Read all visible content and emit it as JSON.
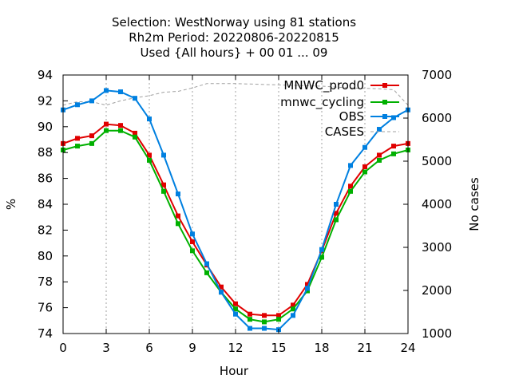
{
  "chart_data": {
    "type": "line",
    "title_lines": [
      "Selection: WestNorway using    81 stations",
      "Rh2m   Period: 20220806-20220815",
      "Used {All hours} + 00 01 ... 09"
    ],
    "xlabel": "Hour",
    "ylabel": "%",
    "y2label": "No cases",
    "xlim": [
      0,
      24
    ],
    "ylim": [
      74,
      94
    ],
    "y2lim": [
      1000,
      7000
    ],
    "xticks": [
      0,
      3,
      6,
      9,
      12,
      15,
      18,
      21,
      24
    ],
    "yticks": [
      74,
      76,
      78,
      80,
      82,
      84,
      86,
      88,
      90,
      92,
      94
    ],
    "y2ticks": [
      1000,
      2000,
      3000,
      4000,
      5000,
      6000,
      7000
    ],
    "grid": "x-only dashed",
    "legend_position": "top-right",
    "x": [
      0,
      1,
      2,
      3,
      4,
      5,
      6,
      7,
      8,
      9,
      10,
      11,
      12,
      13,
      14,
      15,
      16,
      17,
      18,
      19,
      20,
      21,
      22,
      23,
      24
    ],
    "series": [
      {
        "name": "MNWC_prod0",
        "color": "#e00000",
        "marker": "filled-square",
        "values": [
          88.7,
          89.1,
          89.3,
          90.2,
          90.1,
          89.5,
          87.8,
          85.5,
          83.1,
          81.1,
          79.3,
          77.6,
          76.3,
          75.5,
          75.4,
          75.4,
          76.2,
          77.8,
          80.4,
          83.3,
          85.4,
          86.9,
          87.8,
          88.5,
          88.7
        ]
      },
      {
        "name": "mnwc_cycling",
        "color": "#00b000",
        "marker": "filled-square",
        "values": [
          88.2,
          88.5,
          88.7,
          89.7,
          89.7,
          89.2,
          87.4,
          85.0,
          82.5,
          80.4,
          78.7,
          77.2,
          75.9,
          75.1,
          74.9,
          75.1,
          75.9,
          77.3,
          79.9,
          82.8,
          85.0,
          86.5,
          87.4,
          87.9,
          88.2
        ]
      },
      {
        "name": "OBS",
        "color": "#0080e0",
        "marker": "filled-square",
        "values": [
          91.3,
          91.7,
          92.0,
          92.8,
          92.7,
          92.2,
          90.6,
          87.8,
          84.8,
          81.7,
          79.4,
          77.2,
          75.5,
          74.4,
          74.4,
          74.3,
          75.4,
          77.5,
          80.5,
          84.0,
          87.0,
          88.4,
          89.8,
          90.7,
          91.3
        ]
      },
      {
        "name": "CASES",
        "color": "#a0a0a0",
        "marker": "none",
        "axis": "y2",
        "values": [
          6300,
          6380,
          6380,
          6300,
          6400,
          6470,
          6520,
          6600,
          6620,
          6700,
          6800,
          6800,
          6800,
          6790,
          6780,
          6770,
          6760,
          6750,
          6740,
          6720,
          6700,
          6690,
          6680,
          6660,
          6300
        ]
      }
    ]
  }
}
